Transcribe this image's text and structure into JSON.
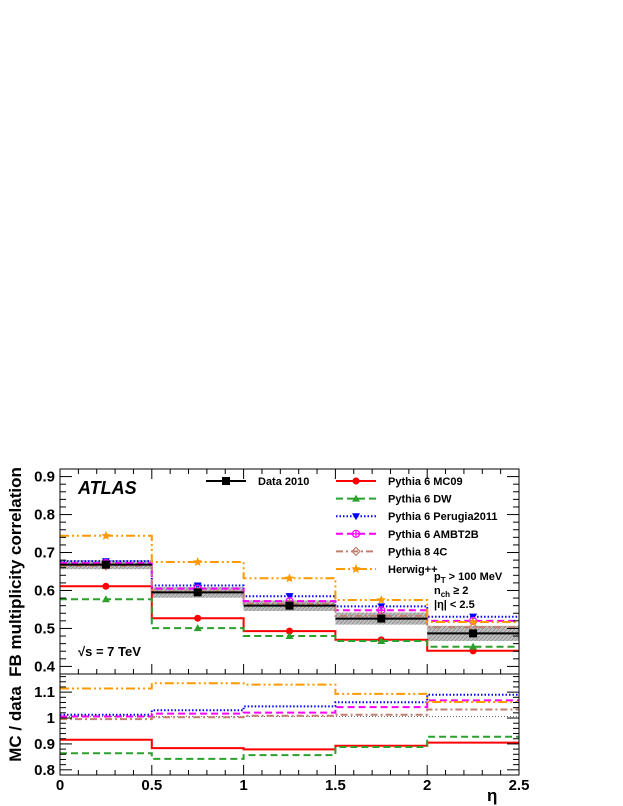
{
  "chart_data": {
    "type": "line",
    "experiment": "ATLAS",
    "energy": "√s = 7 TeV",
    "xlabel": "η",
    "xlim": [
      0,
      2.5
    ],
    "x_ticks": [
      "0",
      "0.5",
      "1",
      "1.5",
      "2",
      "2.5"
    ],
    "bin_edges": [
      0,
      0.5,
      1,
      1.5,
      2,
      2.5
    ],
    "bin_centers": [
      0.25,
      0.75,
      1.25,
      1.75,
      2.25
    ],
    "grid": false,
    "legend_position": "top-center",
    "cuts": {
      "pt": "p",
      "pt_sub": "T",
      "pt_rest": " > 100 MeV",
      "nch": "n",
      "nch_sub": "ch",
      "nch_rest": " ≥ 2",
      "eta": "|η| < 2.5"
    },
    "main_panel": {
      "ylabel": "FB multiplicity correlation",
      "ylim": [
        0.38,
        0.92
      ],
      "y_ticks": [
        "0.4",
        "0.5",
        "0.6",
        "0.7",
        "0.8",
        "0.9"
      ],
      "series": [
        {
          "name": "Data 2010",
          "color": "#000000",
          "style": "data",
          "marker": "square",
          "values": [
            0.668,
            0.595,
            0.56,
            0.526,
            0.487
          ],
          "uncertainty": [
            0.012,
            0.014,
            0.014,
            0.016,
            0.02
          ]
        },
        {
          "name": "Pythia 6 MC09",
          "color": "#ff0000",
          "style": "solid",
          "marker": "circle",
          "values": [
            0.611,
            0.527,
            0.493,
            0.47,
            0.441
          ]
        },
        {
          "name": "Pythia 6 DW",
          "color": "#2ca02c",
          "style": "dashed",
          "marker": "triangle-up",
          "values": [
            0.577,
            0.501,
            0.48,
            0.467,
            0.452
          ]
        },
        {
          "name": "Pythia 6 Perugia2011",
          "color": "#0000ff",
          "style": "dotted",
          "marker": "triangle-down",
          "values": [
            0.677,
            0.613,
            0.585,
            0.558,
            0.531
          ]
        },
        {
          "name": "Pythia 6 AMBT2B",
          "color": "#ff00ff",
          "style": "dashed",
          "marker": "cross-circle",
          "values": [
            0.672,
            0.605,
            0.572,
            0.548,
            0.52
          ]
        },
        {
          "name": "Pythia 8 4C",
          "color": "#c08070",
          "style": "dashdot",
          "marker": "diamond-open",
          "values": [
            0.665,
            0.597,
            0.565,
            0.533,
            0.503
          ]
        },
        {
          "name": "Herwig++",
          "color": "#ff9900",
          "style": "dashdotdot",
          "marker": "star",
          "values": [
            0.744,
            0.675,
            0.632,
            0.575,
            0.517
          ]
        }
      ]
    },
    "ratio_panel": {
      "ylabel": "MC / data",
      "ylim": [
        0.78,
        1.17
      ],
      "y_ticks": [
        "0.8",
        "0.9",
        "1",
        "1.1"
      ],
      "series": [
        {
          "name": "Pythia 6 MC09",
          "values": [
            0.916,
            0.884,
            0.879,
            0.893,
            0.905
          ]
        },
        {
          "name": "Pythia 6 DW",
          "values": [
            0.864,
            0.842,
            0.857,
            0.888,
            0.928
          ]
        },
        {
          "name": "Pythia 6 Perugia2011",
          "values": [
            1.013,
            1.03,
            1.045,
            1.061,
            1.09
          ]
        },
        {
          "name": "Pythia 6 AMBT2B",
          "values": [
            1.006,
            1.017,
            1.021,
            1.042,
            1.068
          ]
        },
        {
          "name": "Pythia 8 4C",
          "values": [
            0.996,
            1.003,
            1.009,
            1.013,
            1.033
          ]
        },
        {
          "name": "Herwig++",
          "values": [
            1.114,
            1.134,
            1.129,
            1.093,
            1.062
          ]
        }
      ]
    }
  }
}
